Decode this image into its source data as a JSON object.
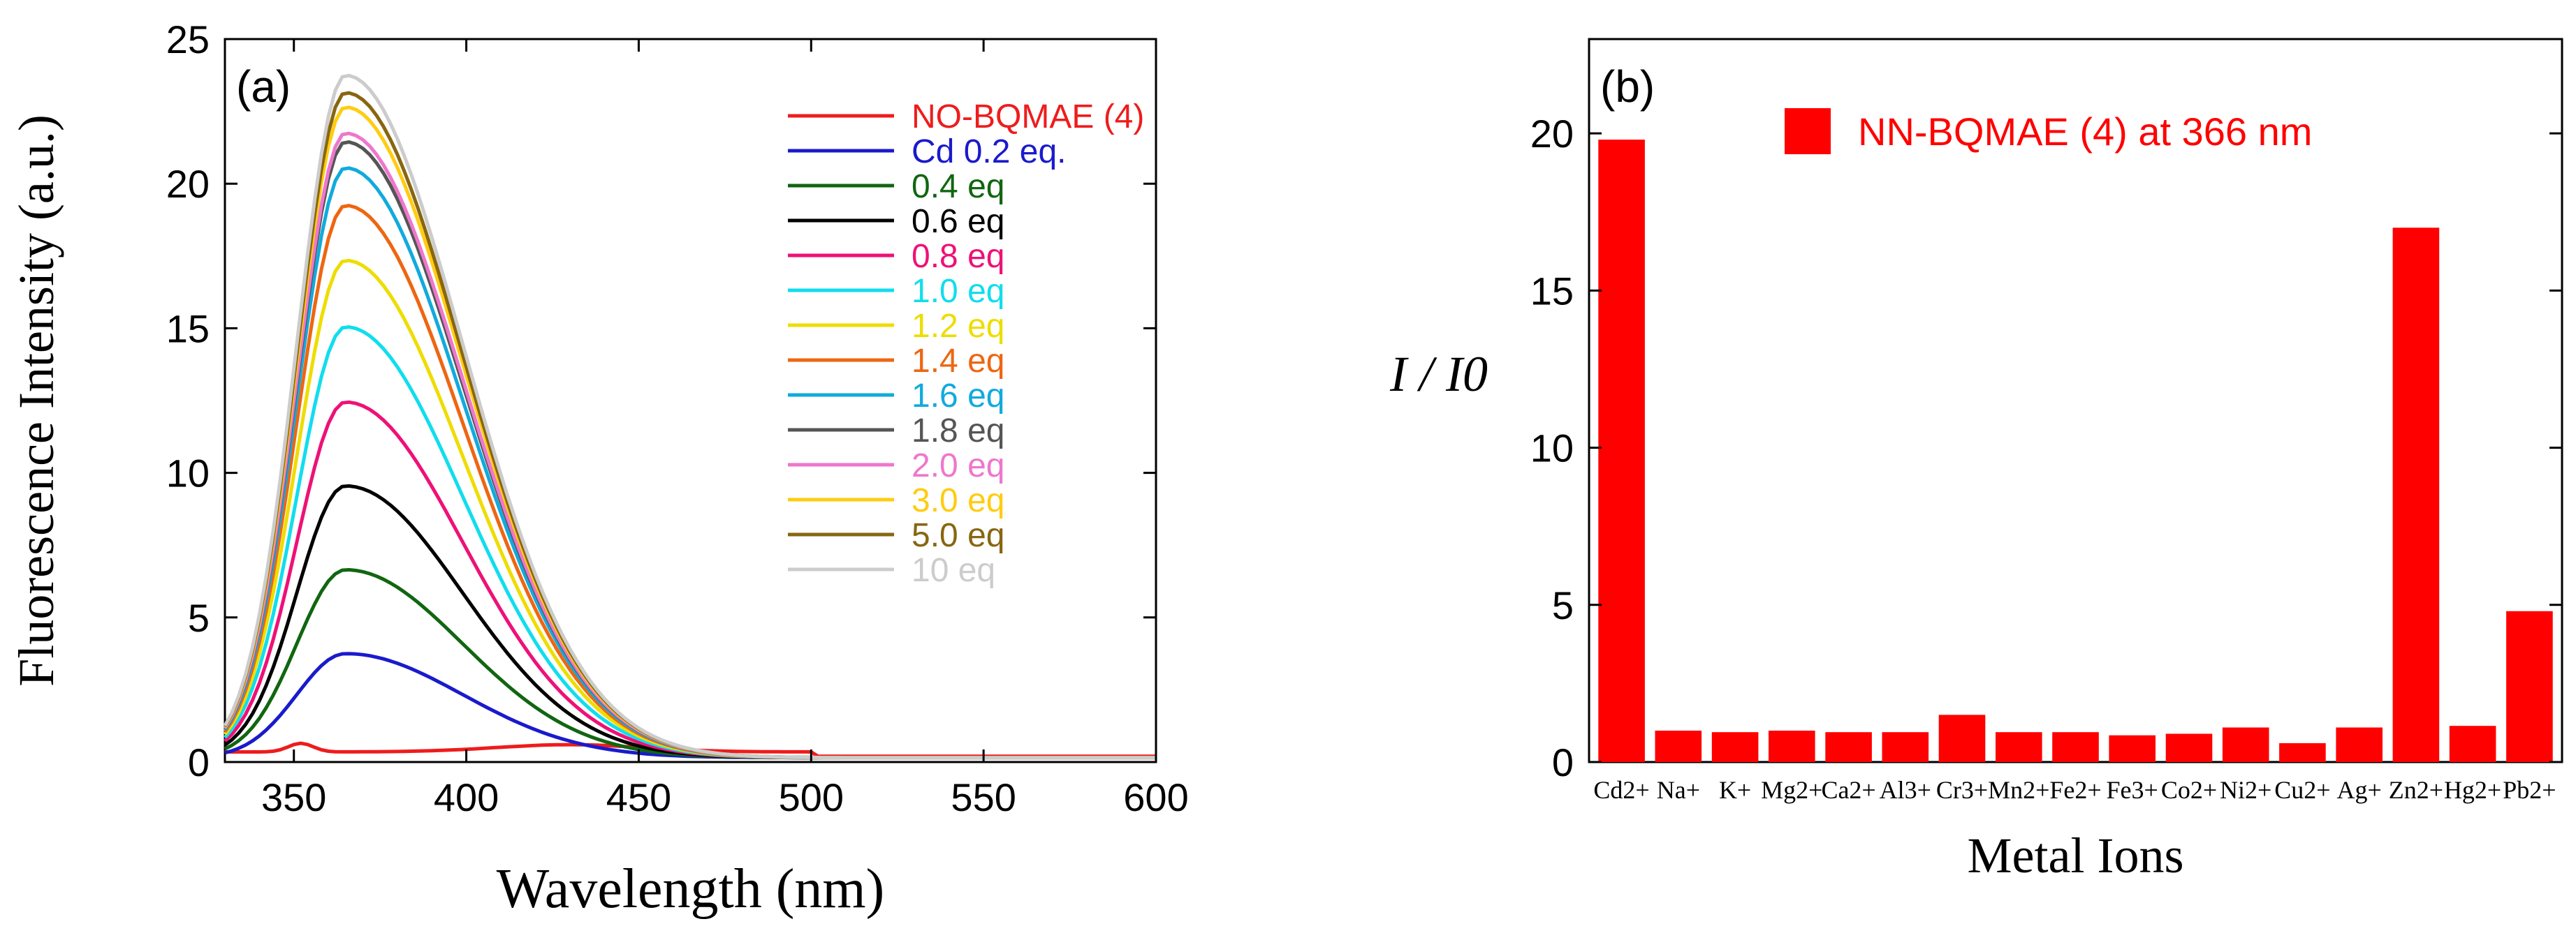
{
  "chart_data": [
    {
      "type": "line",
      "panel_label": "(a)",
      "xlabel": "Wavelength (nm)",
      "ylabel": "Fluorescence Intensity (a.u.)",
      "xlim": [
        330,
        600
      ],
      "ylim": [
        0,
        25
      ],
      "x_ticks": [
        350,
        400,
        450,
        500,
        550,
        600
      ],
      "y_ticks": [
        0,
        5,
        10,
        15,
        20,
        25
      ],
      "legend_position": "top-right",
      "peak_wavelength": 365,
      "series": [
        {
          "name": "NO-BQMAE (4)",
          "color": "#ee1c1c",
          "peak": 0.6
        },
        {
          "name": "Cd 0.2 eq.",
          "color": "#1a1acc",
          "peak": 3.6
        },
        {
          "name": "0.4 eq",
          "color": "#116611",
          "peak": 6.5
        },
        {
          "name": "0.6 eq",
          "color": "#000000",
          "peak": 9.4
        },
        {
          "name": "0.8 eq",
          "color": "#ee1177",
          "peak": 12.3
        },
        {
          "name": "1.0 eq",
          "color": "#11ddee",
          "peak": 14.9
        },
        {
          "name": "1.2 eq",
          "color": "#eedd00",
          "peak": 17.2
        },
        {
          "name": "1.4 eq",
          "color": "#ee6611",
          "peak": 19.1
        },
        {
          "name": "1.6 eq",
          "color": "#11aadd",
          "peak": 20.4
        },
        {
          "name": "1.8 eq",
          "color": "#555555",
          "peak": 21.3
        },
        {
          "name": "2.0 eq",
          "color": "#ee77cc",
          "peak": 21.6
        },
        {
          "name": "3.0 eq",
          "color": "#ffcc11",
          "peak": 22.5
        },
        {
          "name": "5.0 eq",
          "color": "#886611",
          "peak": 23.0
        },
        {
          "name": "10 eq",
          "color": "#cccccc",
          "peak": 23.6
        }
      ]
    },
    {
      "type": "bar",
      "panel_label": "(b)",
      "legend": "NN-BQMAE (4) at 366 nm",
      "ylabel": "I / I0",
      "xlabel": "Metal Ions",
      "ylim": [
        0,
        23
      ],
      "y_ticks": [
        0,
        5,
        10,
        15,
        20
      ],
      "bar_color": "#ff0000",
      "categories": [
        "Cd2+",
        "Na+",
        "K+",
        "Mg2+",
        "Ca2+",
        "Al3+",
        "Cr3+",
        "Mn2+",
        "Fe2+",
        "Fe3+",
        "Co2+",
        "Ni2+",
        "Cu2+",
        "Ag+",
        "Zn2+",
        "Hg2+",
        "Pb2+"
      ],
      "values": [
        19.8,
        1.0,
        0.95,
        1.0,
        0.95,
        0.95,
        1.5,
        0.95,
        0.95,
        0.85,
        0.9,
        1.1,
        0.6,
        1.1,
        17.0,
        1.15,
        4.8
      ]
    }
  ]
}
